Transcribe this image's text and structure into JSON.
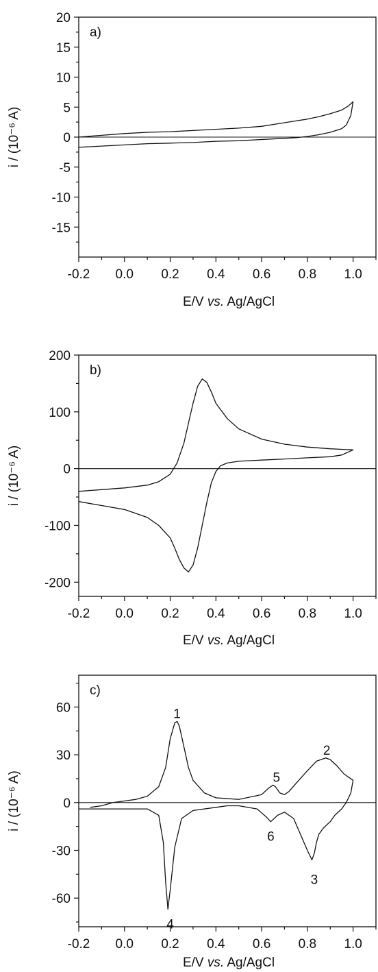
{
  "chart_data": [
    {
      "type": "line",
      "panel_label": "a)",
      "xlabel_parts": [
        "E/V ",
        "vs.",
        " Ag/AgCl"
      ],
      "ylabel": "i / (10⁻⁶ A)",
      "xlim": [
        -0.2,
        1.1
      ],
      "ylim": [
        -20,
        20
      ],
      "x_ticks": [
        -0.2,
        0.0,
        0.2,
        0.4,
        0.6,
        0.8,
        1.0
      ],
      "x_tick_labels": [
        "-0.2",
        "0.0",
        "0.2",
        "0.4",
        "0.6",
        "0.8",
        "1.0"
      ],
      "y_ticks": [
        -15,
        -10,
        -5,
        0,
        5,
        10,
        15,
        20
      ],
      "y_tick_labels": [
        "-15",
        "-10",
        "-5",
        "0",
        "5",
        "10",
        "15",
        "20"
      ],
      "zero_line": true,
      "series": [
        {
          "x": [
            -0.2,
            -0.1,
            0.0,
            0.1,
            0.2,
            0.3,
            0.4,
            0.5,
            0.6,
            0.65,
            0.7,
            0.75,
            0.8,
            0.85,
            0.9,
            0.95,
            0.98,
            1.0,
            0.99,
            0.97,
            0.95,
            0.9,
            0.85,
            0.8,
            0.75,
            0.7,
            0.6,
            0.5,
            0.4,
            0.3,
            0.2,
            0.1,
            0.0,
            -0.1,
            -0.2
          ],
          "y": [
            0.0,
            0.3,
            0.6,
            0.8,
            0.9,
            1.1,
            1.3,
            1.5,
            1.8,
            2.1,
            2.4,
            2.7,
            3.0,
            3.4,
            3.9,
            4.5,
            5.2,
            5.9,
            3.6,
            2.0,
            1.4,
            0.8,
            0.4,
            0.1,
            -0.1,
            -0.2,
            -0.4,
            -0.6,
            -0.7,
            -0.9,
            -1.0,
            -1.1,
            -1.3,
            -1.5,
            -1.7
          ]
        }
      ]
    },
    {
      "type": "line",
      "panel_label": "b)",
      "xlabel_parts": [
        "E/V ",
        "vs.",
        " Ag/AgCl"
      ],
      "ylabel": "i / (10⁻⁶ A)",
      "xlim": [
        -0.2,
        1.1
      ],
      "ylim": [
        -225,
        200
      ],
      "x_ticks": [
        -0.2,
        0.0,
        0.2,
        0.4,
        0.6,
        0.8,
        1.0
      ],
      "x_tick_labels": [
        "-0.2",
        "0.0",
        "0.2",
        "0.4",
        "0.6",
        "0.8",
        "1.0"
      ],
      "y_ticks": [
        -200,
        -100,
        0,
        100,
        200
      ],
      "y_tick_labels": [
        "-200",
        "-100",
        "0",
        "100",
        "200"
      ],
      "zero_line": true,
      "series": [
        {
          "x": [
            -0.2,
            -0.1,
            0.0,
            0.1,
            0.15,
            0.2,
            0.23,
            0.26,
            0.28,
            0.3,
            0.32,
            0.34,
            0.36,
            0.38,
            0.4,
            0.45,
            0.5,
            0.6,
            0.7,
            0.8,
            0.9,
            0.95,
            1.0,
            0.95,
            0.9,
            0.8,
            0.7,
            0.6,
            0.5,
            0.45,
            0.42,
            0.4,
            0.38,
            0.36,
            0.34,
            0.32,
            0.3,
            0.28,
            0.26,
            0.24,
            0.22,
            0.2,
            0.15,
            0.1,
            0.0,
            -0.1,
            -0.2
          ],
          "y": [
            -40,
            -37,
            -34,
            -29,
            -23,
            -10,
            10,
            45,
            80,
            115,
            145,
            158,
            152,
            135,
            115,
            88,
            70,
            52,
            43,
            38,
            35,
            34,
            33,
            24,
            21,
            19,
            17,
            15,
            13,
            10,
            5,
            -5,
            -25,
            -60,
            -100,
            -140,
            -170,
            -182,
            -175,
            -160,
            -140,
            -122,
            -100,
            -86,
            -72,
            -65,
            -58
          ]
        }
      ]
    },
    {
      "type": "line",
      "panel_label": "c)",
      "xlabel_parts": [
        "E/V ",
        "vs.",
        " Ag/AgCl"
      ],
      "ylabel": "i / (10⁻⁶ A)",
      "xlim": [
        -0.2,
        1.1
      ],
      "ylim": [
        -78,
        80
      ],
      "x_ticks": [
        -0.2,
        0.0,
        0.2,
        0.4,
        0.6,
        0.8,
        1.0
      ],
      "x_tick_labels": [
        "-0.2",
        "0.0",
        "0.2",
        "0.4",
        "0.6",
        "0.8",
        "1.0"
      ],
      "y_ticks": [
        -60,
        -30,
        0,
        30,
        60
      ],
      "y_tick_labels": [
        "-60",
        "-30",
        "0",
        "30",
        "60"
      ],
      "zero_line": true,
      "series": [
        {
          "x": [
            -0.15,
            -0.1,
            -0.05,
            0.0,
            0.05,
            0.1,
            0.15,
            0.18,
            0.2,
            0.22,
            0.23,
            0.24,
            0.26,
            0.28,
            0.3,
            0.35,
            0.4,
            0.5,
            0.6,
            0.63,
            0.65,
            0.66,
            0.68,
            0.7,
            0.72,
            0.75,
            0.8,
            0.84,
            0.88,
            0.9,
            0.93,
            0.96,
            0.98,
            1.0,
            0.99,
            0.97,
            0.95,
            0.92,
            0.9,
            0.87,
            0.85,
            0.84,
            0.83,
            0.82,
            0.8,
            0.77,
            0.74,
            0.7,
            0.67,
            0.64,
            0.62,
            0.58,
            0.5,
            0.45,
            0.4,
            0.3,
            0.25,
            0.22,
            0.2,
            0.19,
            0.18,
            0.17,
            0.15,
            0.1,
            0.0,
            -0.1,
            -0.2
          ],
          "y": [
            -3,
            -2,
            0,
            1,
            2,
            4,
            10,
            22,
            40,
            50,
            51,
            48,
            35,
            22,
            14,
            6,
            3,
            2,
            5,
            9,
            11,
            10,
            6,
            5,
            7,
            12,
            20,
            26,
            28,
            27,
            23,
            18,
            16,
            14,
            6,
            0,
            -4,
            -8,
            -12,
            -16,
            -20,
            -25,
            -32,
            -36,
            -30,
            -20,
            -10,
            -6,
            -8,
            -12,
            -9,
            -4,
            -2,
            -2,
            -3,
            -5,
            -10,
            -28,
            -55,
            -67,
            -50,
            -25,
            -8,
            -4,
            -4,
            -4,
            -4
          ]
        }
      ],
      "peak_labels": [
        {
          "text": "1",
          "x": 0.23,
          "y": 56
        },
        {
          "text": "2",
          "x": 0.885,
          "y": 33
        },
        {
          "text": "3",
          "x": 0.83,
          "y": -48
        },
        {
          "text": "4",
          "x": 0.2,
          "y": -76
        },
        {
          "text": "5",
          "x": 0.665,
          "y": 16
        },
        {
          "text": "6",
          "x": 0.64,
          "y": -21
        }
      ]
    }
  ]
}
